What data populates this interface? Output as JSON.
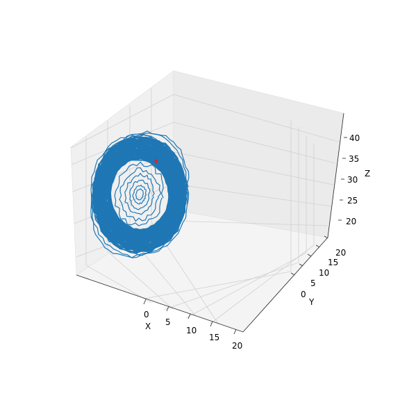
{
  "chart_data": {
    "type": "line3d",
    "title": "",
    "xlabel": "X",
    "ylabel": "Y",
    "zlabel": "Z",
    "x_ticks": [
      "0",
      "5",
      "10",
      "15",
      "20"
    ],
    "y_ticks": [
      "0",
      "5",
      "10",
      "15",
      "20"
    ],
    "z_ticks": [
      "20",
      "25",
      "30",
      "35",
      "40"
    ],
    "xlim": [
      -10,
      20
    ],
    "ylim": [
      -10,
      20
    ],
    "zlim": [
      17,
      44
    ],
    "series": [
      {
        "color": "#1f77b4",
        "description_shape": "dense elliptical ring (annulus) with a few inner spiral loops",
        "ring_center": [
          -8.5,
          10.0,
          31.0
        ],
        "ring_outer_half_width_x": 7.0,
        "ring_outer_half_width_z": 10.5
      }
    ],
    "marker": {
      "color": "#d62728",
      "point": [
        -6.5,
        10.0,
        36.5
      ]
    },
    "background_pane_color": "#f2f2f2",
    "grid": true
  }
}
